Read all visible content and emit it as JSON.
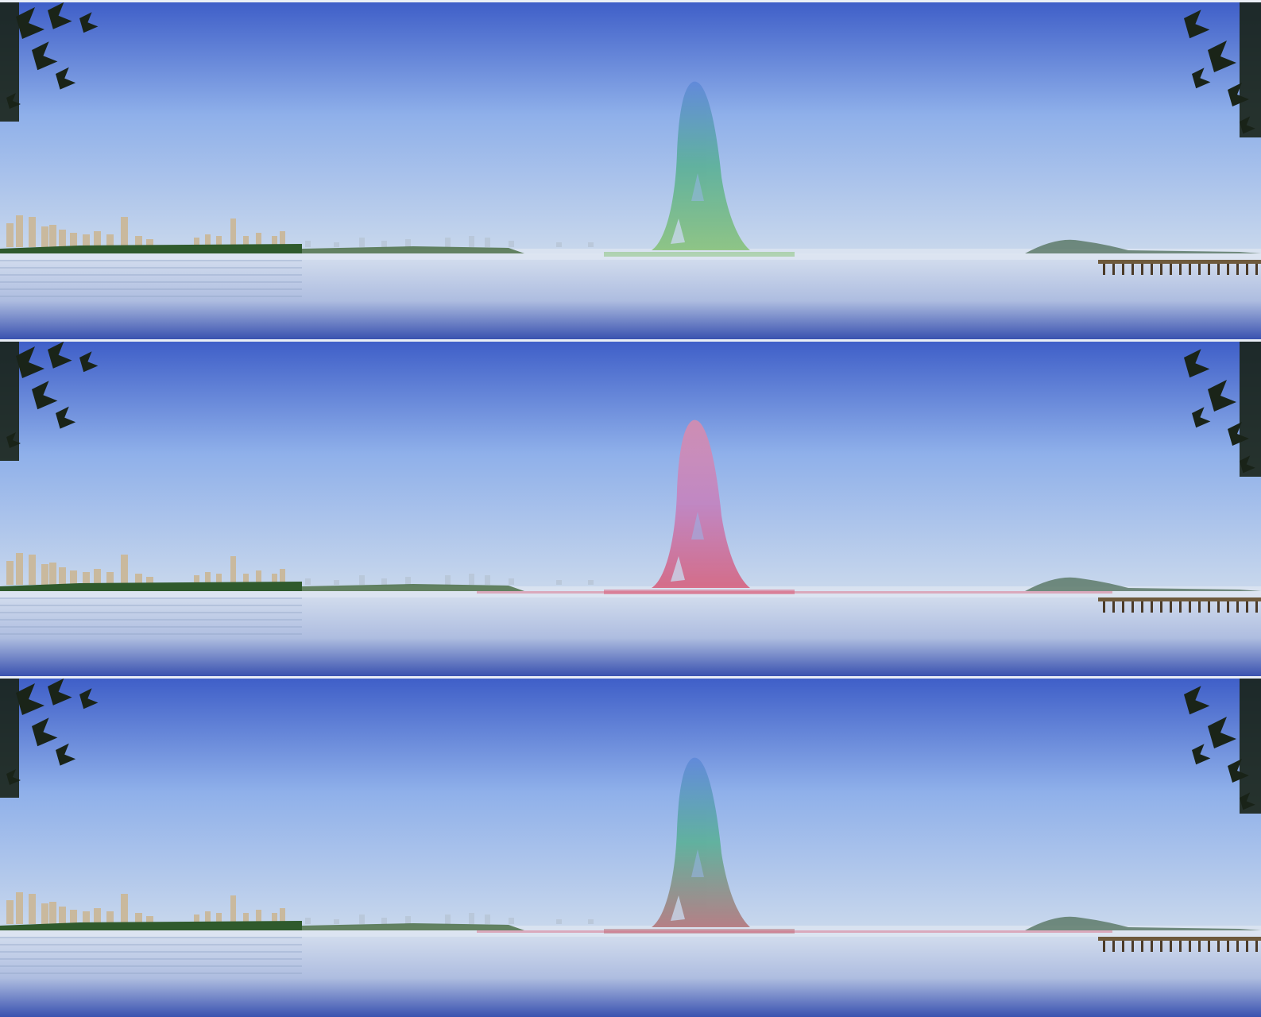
{
  "image": {
    "panels": [
      {
        "id": "panel-1",
        "tower_tint": "green-blue"
      },
      {
        "id": "panel-2",
        "tower_tint": "pink-red"
      },
      {
        "id": "panel-3",
        "tower_tint": "green-red"
      }
    ]
  },
  "colors": {
    "sky_top": "#3f5fc8",
    "sky_mid": "#8fb0ea",
    "sky_horizon": "#c9d8ec",
    "water_top": "#d6e0ef",
    "water_bottom": "#3a52b0",
    "trees": "#2f5a2c",
    "buildings": "#c9b79a",
    "leaves": "#1a2418",
    "tower_green": "#4fae8a",
    "tower_blue": "#5b86d8",
    "tower_pink": "#e58aa6",
    "tower_red": "#d8506e",
    "hill": "#5d7a6a",
    "pier": "#6e5a3c"
  }
}
